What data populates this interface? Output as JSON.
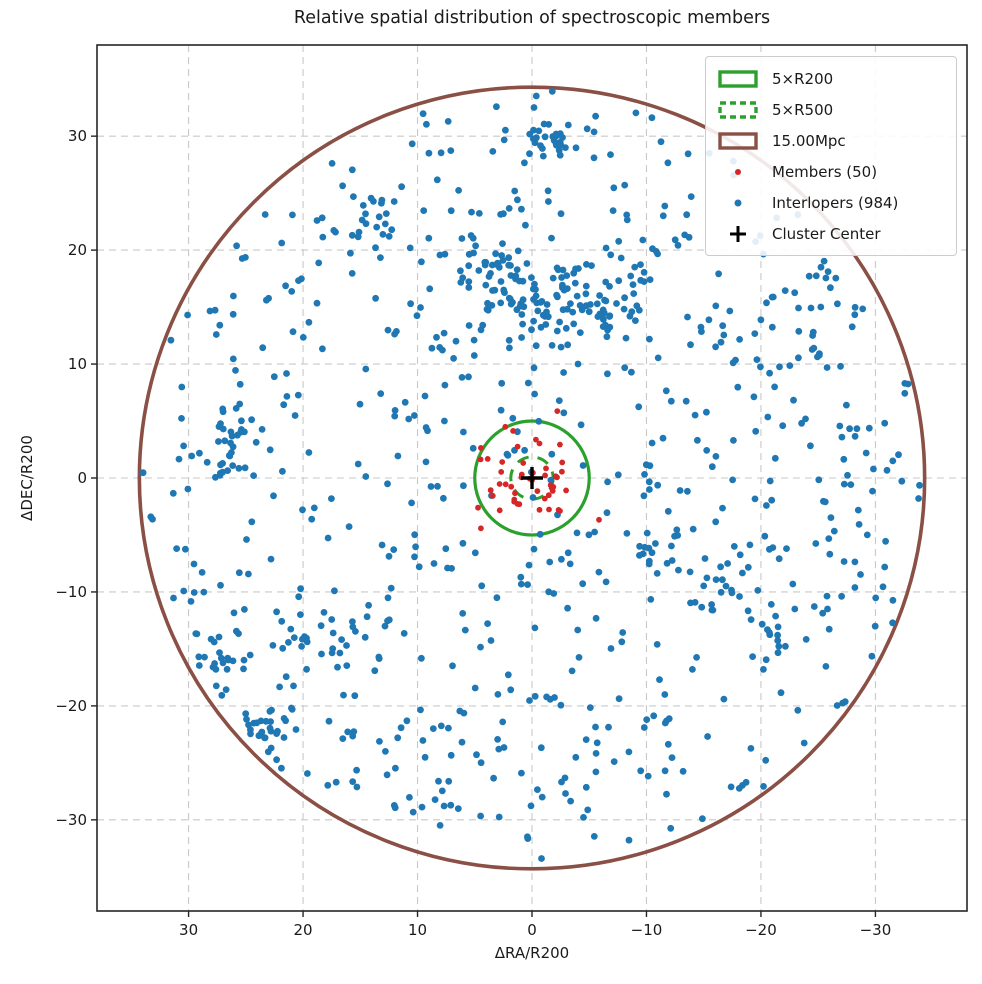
{
  "chart_data": {
    "type": "scatter",
    "title": "Relative spatial distribution of spectroscopic members",
    "xlabel": "ΔRA/R200",
    "ylabel": "ΔDEC/R200",
    "xlim": [
      38,
      -38
    ],
    "ylim": [
      -38,
      38
    ],
    "x_axis_inverted": true,
    "grid": {
      "visible": true,
      "color": "#c9c9c9",
      "dash": [
        7,
        5
      ],
      "width": 1.1
    },
    "axes": {
      "spine_color": "#262626",
      "spine_width": 1.6,
      "tick_length": 6,
      "tick_color": "#262626",
      "tick_label_color": "#1a1a1a"
    },
    "xticks": {
      "values": [
        30,
        20,
        10,
        0,
        -10,
        -20,
        -30
      ],
      "labels": [
        "30",
        "20",
        "10",
        "0",
        "−10",
        "−20",
        "−30"
      ]
    },
    "yticks": {
      "values": [
        30,
        20,
        10,
        0,
        -10,
        -20,
        -30
      ],
      "labels": [
        "30",
        "20",
        "10",
        "0",
        "−10",
        "−20",
        "−30"
      ]
    },
    "overlays": [
      {
        "name": "mpc-circle",
        "shape": "circle",
        "center": [
          0,
          0
        ],
        "radius": 34.3,
        "stroke": "#8a4f45",
        "style": "solid",
        "stroke_width": 3.6,
        "label": "15.00Mpc"
      },
      {
        "name": "r200-circle",
        "shape": "circle",
        "center": [
          0,
          0
        ],
        "radius": 5.0,
        "stroke": "#2ca02c",
        "style": "solid",
        "stroke_width": 3.2,
        "label": "5×R200"
      },
      {
        "name": "r500-circle",
        "shape": "circle",
        "center": [
          0,
          0
        ],
        "radius": 1.85,
        "stroke": "#2ca02c",
        "style": "dashed",
        "dash": [
          12,
          9
        ],
        "stroke_width": 3.0,
        "label": "5×R500"
      },
      {
        "name": "cluster-center",
        "shape": "plus",
        "center": [
          0,
          0
        ],
        "color": "#000000",
        "half_size": 11,
        "stroke_width": 3.4,
        "label": "Cluster Center"
      }
    ],
    "series": [
      {
        "name": "Interlopers (984)",
        "color": "#1f77b4",
        "count": 984,
        "marker_radius": 3.4,
        "generation": {
          "kind": "clusters_plus_background",
          "seed": 20240,
          "disk_radius": 34.0,
          "clusters": [
            {
              "center": [
                0.5,
                16.0
              ],
              "sigma": [
                2.8,
                2.2
              ],
              "n": 80
            },
            {
              "center": [
                -7.0,
                15.0
              ],
              "sigma": [
                1.6,
                1.4
              ],
              "n": 30
            },
            {
              "center": [
                4.0,
                18.5
              ],
              "sigma": [
                1.6,
                1.5
              ],
              "n": 18
            },
            {
              "center": [
                -1.8,
                30.5
              ],
              "sigma": [
                1.4,
                1.2
              ],
              "n": 26
            },
            {
              "center": [
                14.8,
                22.5
              ],
              "sigma": [
                1.5,
                1.2
              ],
              "n": 20
            },
            {
              "center": [
                26.5,
                2.5
              ],
              "sigma": [
                1.2,
                2.0
              ],
              "n": 30
            },
            {
              "center": [
                27.5,
                -15.5
              ],
              "sigma": [
                1.4,
                1.2
              ],
              "n": 18
            },
            {
              "center": [
                23.0,
                -22.0
              ],
              "sigma": [
                1.6,
                1.4
              ],
              "n": 22
            },
            {
              "center": [
                18.0,
                -13.5
              ],
              "sigma": [
                3.0,
                2.5
              ],
              "n": 28
            },
            {
              "center": [
                -12.0,
                -6.5
              ],
              "sigma": [
                1.8,
                1.5
              ],
              "n": 14
            },
            {
              "center": [
                -17.0,
                -9.5
              ],
              "sigma": [
                1.8,
                1.5
              ],
              "n": 16
            },
            {
              "center": [
                -22.0,
                -13.0
              ],
              "sigma": [
                1.8,
                1.6
              ],
              "n": 16
            },
            {
              "center": [
                -23.7,
                14.0
              ],
              "sigma": [
                1.5,
                2.5
              ],
              "n": 14
            },
            {
              "center": [
                8.5,
                -28.0
              ],
              "sigma": [
                1.5,
                1.2
              ],
              "n": 12
            },
            {
              "center": [
                -11.0,
                20.5
              ],
              "sigma": [
                1.5,
                1.5
              ],
              "n": 12
            }
          ]
        }
      },
      {
        "name": "Members (50)",
        "color": "#d62728",
        "count": 50,
        "marker_radius": 2.9,
        "generation": {
          "kind": "gaussian",
          "seed": 77,
          "center": [
            0.4,
            0.3
          ],
          "sigma": [
            2.4,
            2.2
          ],
          "max_radius": 7.5
        }
      }
    ],
    "legend": {
      "position": "top-right",
      "items": [
        {
          "label": "5×R200",
          "swatch": "rect",
          "color": "#2ca02c",
          "dashed": false
        },
        {
          "label": "5×R500",
          "swatch": "rect",
          "color": "#2ca02c",
          "dashed": true
        },
        {
          "label": "15.00Mpc",
          "swatch": "rect",
          "color": "#8a4f45",
          "dashed": false
        },
        {
          "label": "Members (50)",
          "swatch": "dot",
          "color": "#d62728",
          "radius": 3.0
        },
        {
          "label": "Interlopers (984)",
          "swatch": "dot",
          "color": "#1f77b4",
          "radius": 3.5
        },
        {
          "label": "Cluster Center",
          "swatch": "plus",
          "color": "#000000"
        }
      ]
    }
  }
}
